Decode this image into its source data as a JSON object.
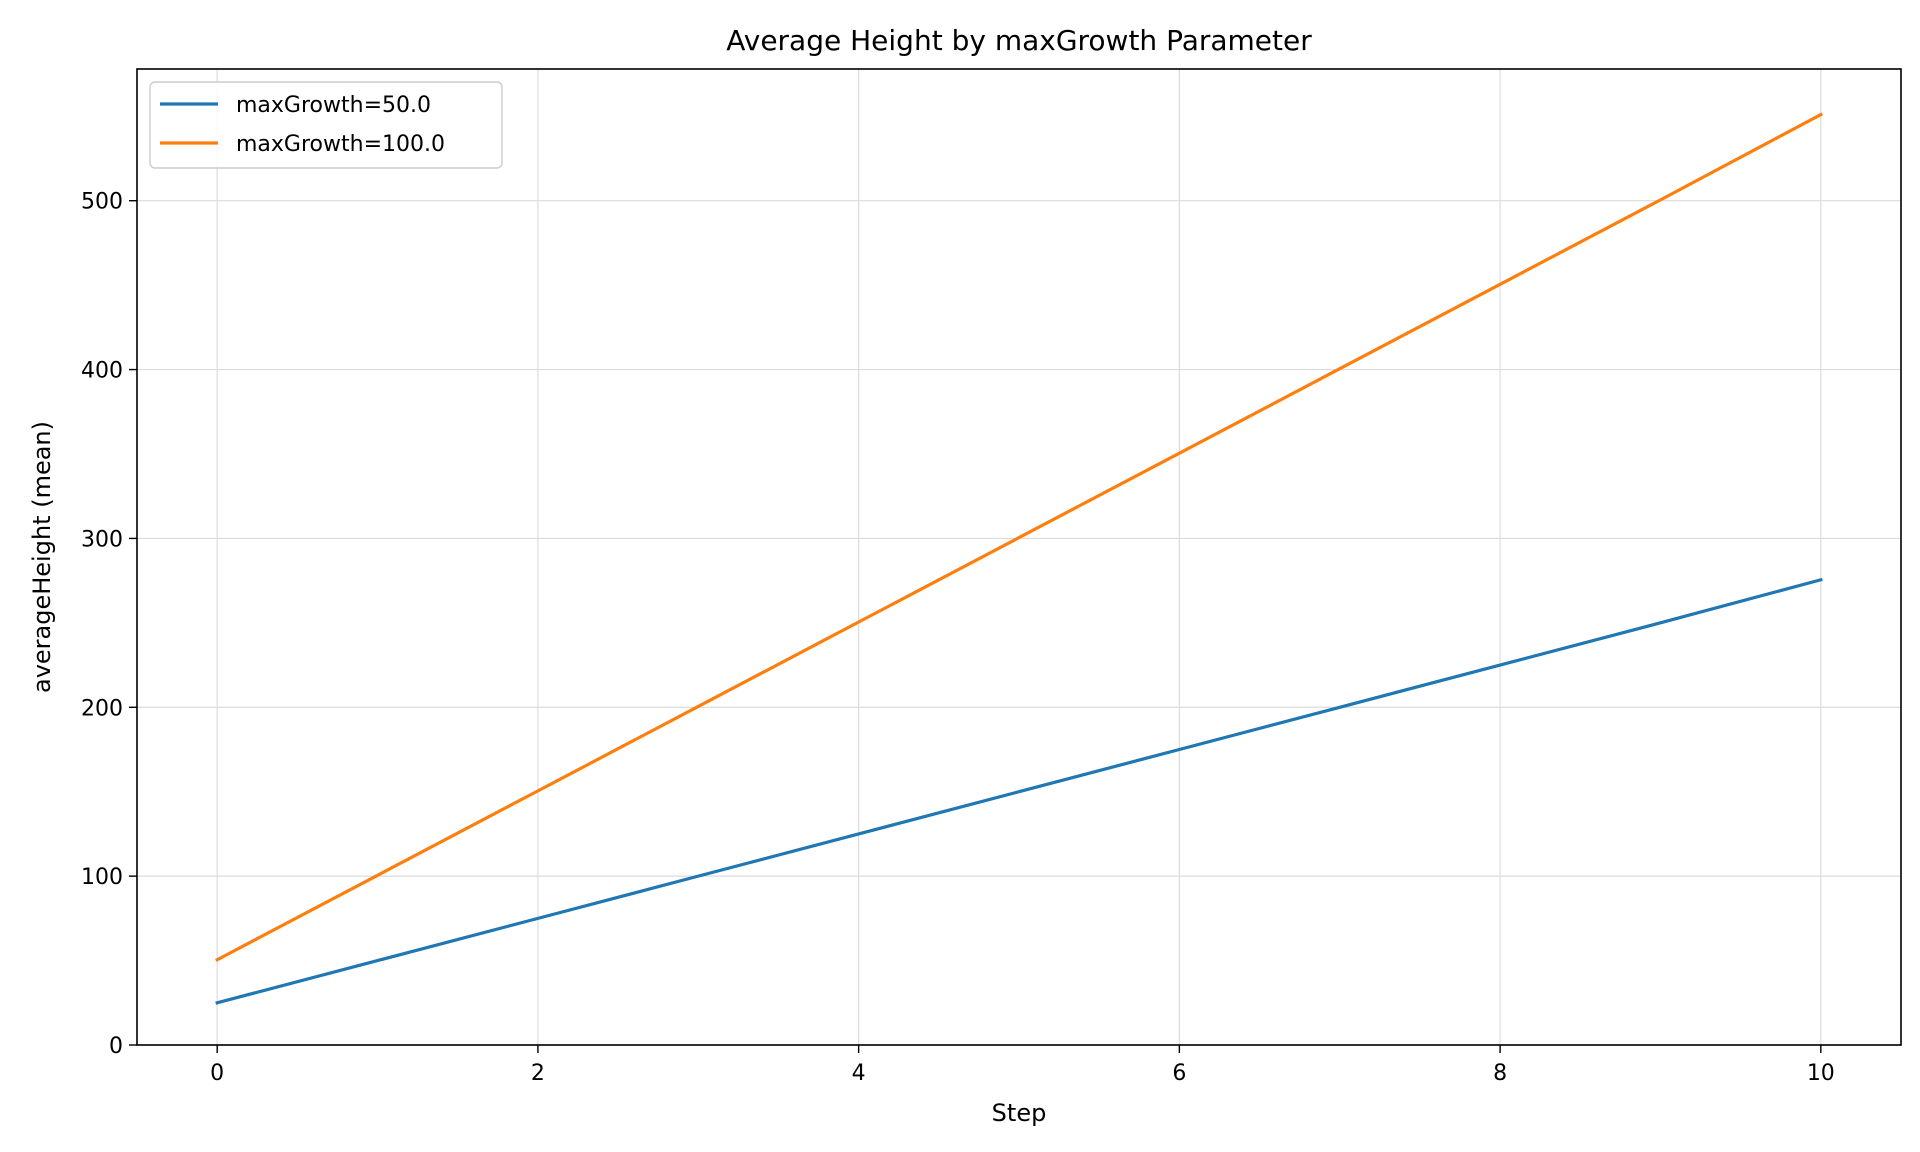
{
  "chart_data": {
    "type": "line",
    "title": "Average Height by maxGrowth Parameter",
    "xlabel": "Step",
    "ylabel": "averageHeight (mean)",
    "xlim": [
      -0.5,
      10.5
    ],
    "ylim": [
      0,
      578
    ],
    "xticks": [
      0,
      2,
      4,
      6,
      8,
      10
    ],
    "yticks": [
      0,
      100,
      200,
      300,
      400,
      500
    ],
    "grid": true,
    "legend_position": "upper-left",
    "x": [
      0,
      1,
      2,
      3,
      4,
      5,
      6,
      7,
      8,
      9,
      10
    ],
    "series": [
      {
        "name": "maxGrowth=50.0",
        "color": "#1f77b4",
        "values": [
          25,
          50,
          75,
          100,
          125,
          150,
          175,
          200,
          225,
          250,
          275.5
        ]
      },
      {
        "name": "maxGrowth=100.0",
        "color": "#ff7f0e",
        "values": [
          50.5,
          100.5,
          150.5,
          200.5,
          250.5,
          300.5,
          350.5,
          400.5,
          450.5,
          500.5,
          551
        ]
      }
    ]
  }
}
